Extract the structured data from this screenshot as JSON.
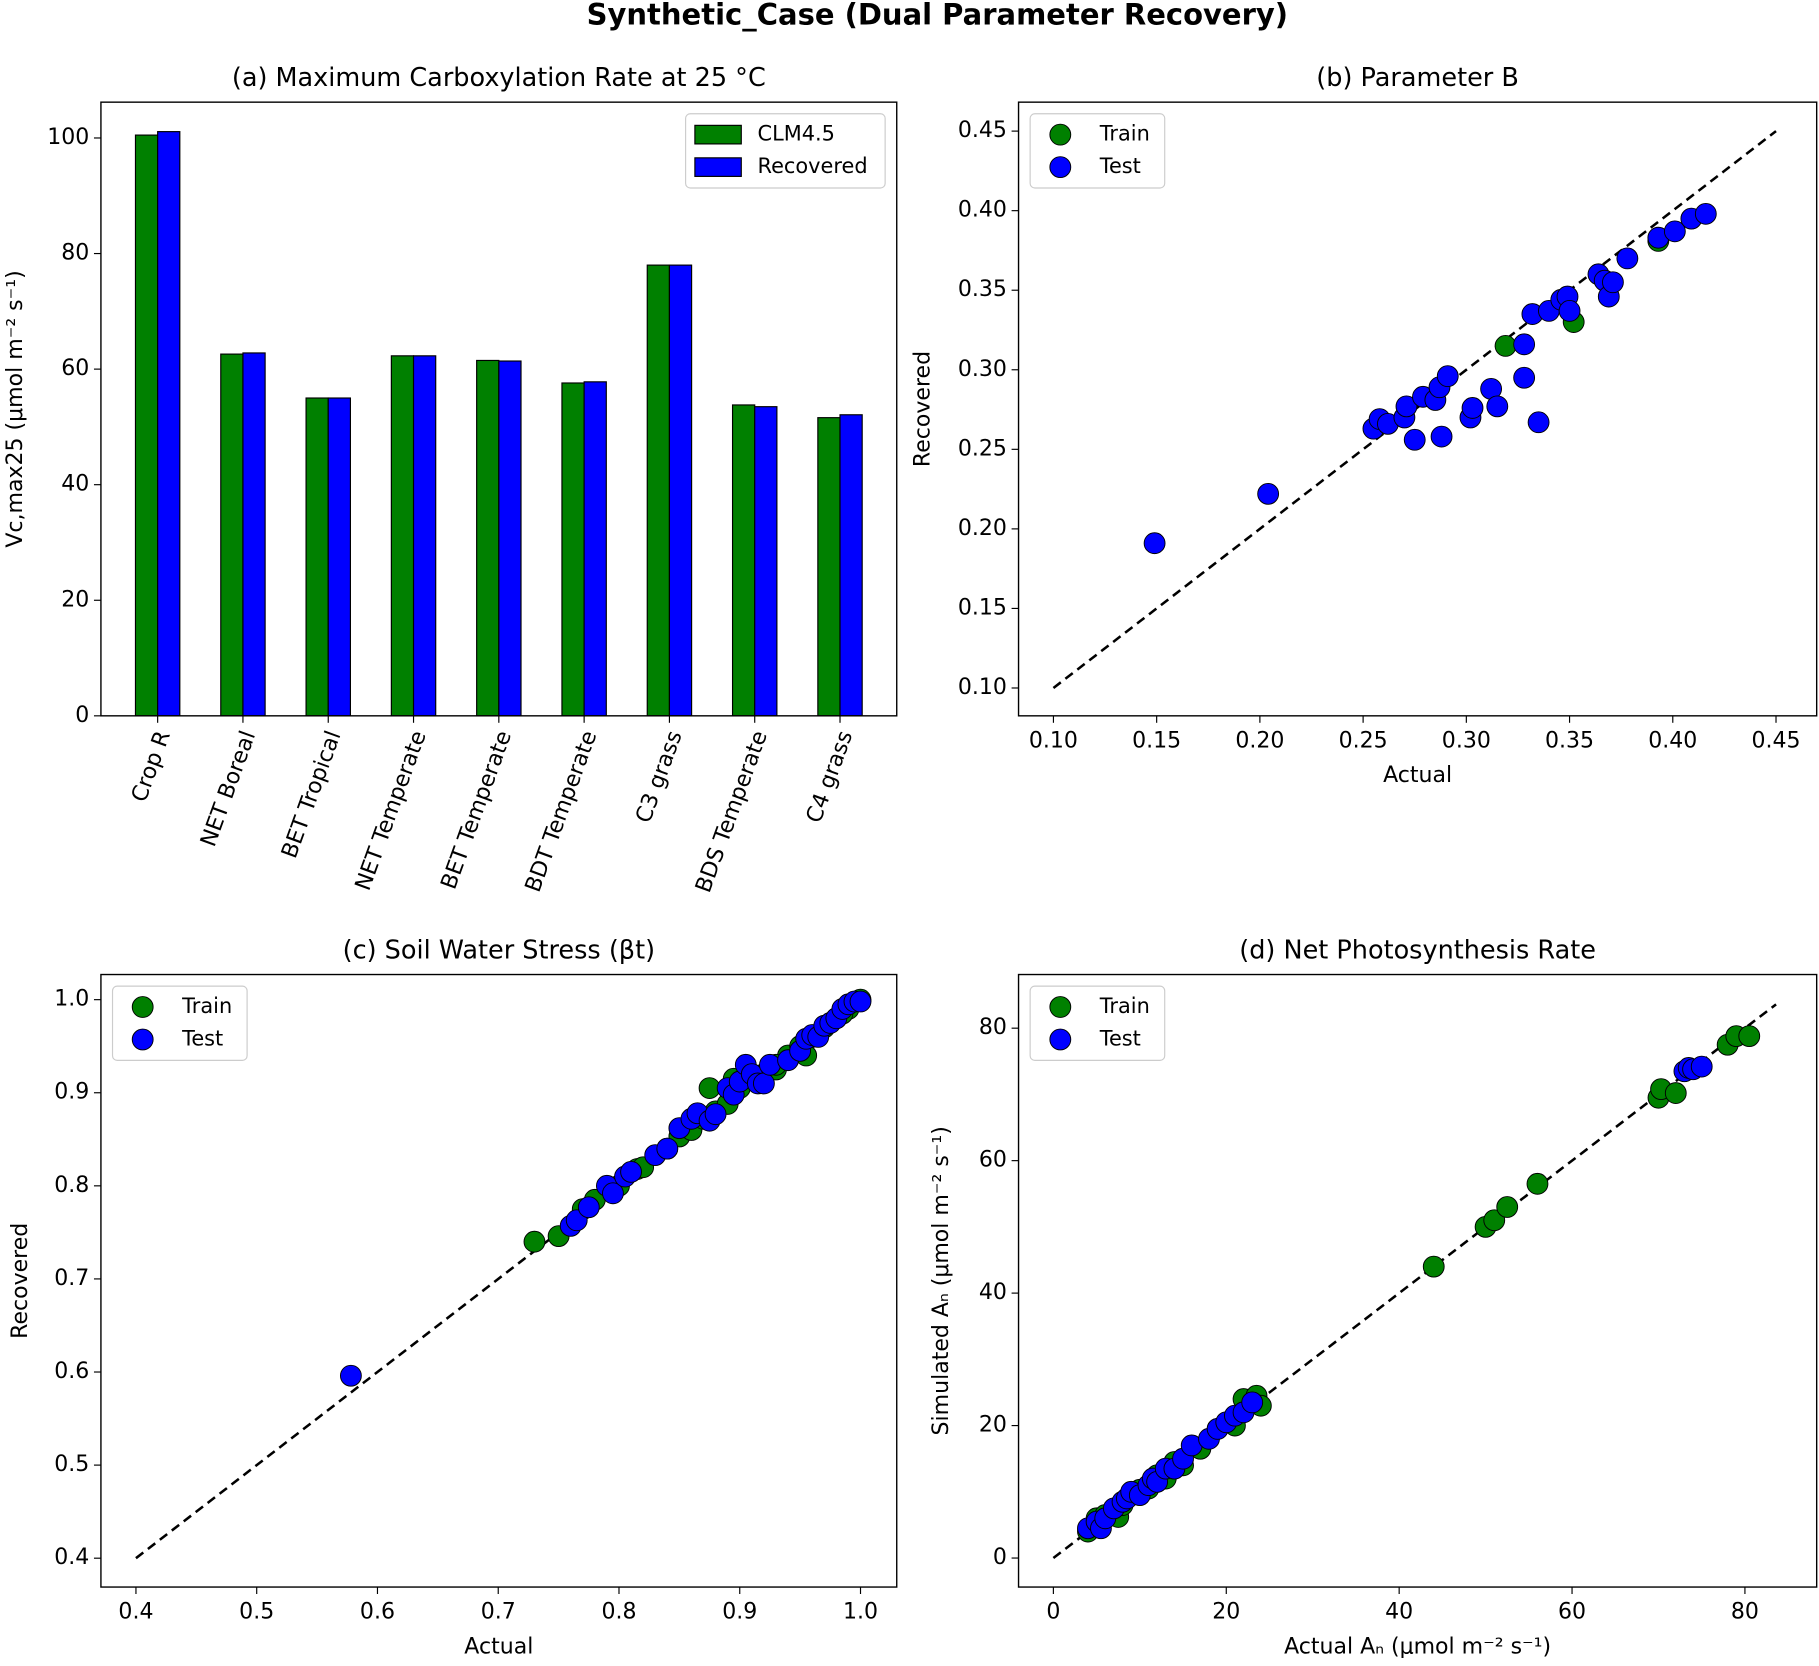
{
  "title": "Synthetic_Case (Dual Parameter Recovery)",
  "chart_data": [
    {
      "type": "bar",
      "title": "(a) Maximum Carboxylation Rate at 25 °C",
      "ylabel": "Vc,max25 (μmol m⁻² s⁻¹)",
      "categories": [
        "Crop R",
        "NET Boreal",
        "BET Tropical",
        "NET Temperate",
        "BET Temperate",
        "BDT Temperate",
        "C3 grass",
        "BDS Temperate",
        "C4 grass"
      ],
      "series": [
        {
          "name": "CLM4.5",
          "color": "#008000",
          "values": [
            100.5,
            62.6,
            55,
            62.3,
            61.5,
            57.6,
            78,
            53.8,
            51.6
          ]
        },
        {
          "name": "Recovered",
          "color": "#0000ff",
          "values": [
            101.1,
            62.8,
            55,
            62.3,
            61.4,
            57.8,
            78,
            53.5,
            52.1
          ]
        }
      ],
      "ylim": [
        0,
        106.2
      ],
      "yticks": [
        0,
        20,
        40,
        60,
        80,
        100
      ],
      "legend": "upper right"
    },
    {
      "type": "scatter",
      "title": "(b) Parameter B",
      "xlabel": "Actual",
      "ylabel": "Recovered",
      "xlim": [
        0.0831,
        0.4697
      ],
      "ylim": [
        0.0825,
        0.4682
      ],
      "xticks": [
        {
          "value": 0.1,
          "label": "0.10"
        },
        0.15,
        {
          "value": 0.2,
          "label": "0.20"
        },
        0.25,
        {
          "value": 0.3,
          "label": "0.30"
        },
        0.35,
        {
          "value": 0.4,
          "label": "0.40"
        },
        0.45
      ],
      "yticks": [
        {
          "value": 0.1,
          "label": "0.10"
        },
        0.15,
        {
          "value": 0.2,
          "label": "0.20"
        },
        0.25,
        {
          "value": 0.3,
          "label": "0.30"
        },
        0.35,
        {
          "value": 0.4,
          "label": "0.40"
        },
        0.45
      ],
      "identity_line": [
        0.1,
        0.45
      ],
      "legend": "upper left",
      "series": [
        {
          "name": "Train",
          "color": "#008000",
          "x": [
            0.319,
            0.352,
            0.393
          ],
          "values": [
            0.315,
            0.33,
            0.381
          ]
        },
        {
          "name": "Test",
          "color": "#0000ff",
          "x": [
            0.149,
            0.204,
            0.255,
            0.258,
            0.262,
            0.27,
            0.271,
            0.275,
            0.279,
            0.285,
            0.287,
            0.288,
            0.291,
            0.302,
            0.303,
            0.312,
            0.315,
            0.328,
            0.328,
            0.332,
            0.335,
            0.34,
            0.346,
            0.349,
            0.35,
            0.364,
            0.367,
            0.369,
            0.371,
            0.378,
            0.393,
            0.401,
            0.409,
            0.416
          ],
          "values": [
            0.191,
            0.222,
            0.263,
            0.269,
            0.266,
            0.27,
            0.277,
            0.256,
            0.283,
            0.281,
            0.289,
            0.258,
            0.296,
            0.27,
            0.276,
            0.288,
            0.277,
            0.316,
            0.295,
            0.335,
            0.267,
            0.337,
            0.344,
            0.346,
            0.337,
            0.36,
            0.356,
            0.346,
            0.355,
            0.37,
            0.383,
            0.387,
            0.395,
            0.398
          ]
        }
      ]
    },
    {
      "type": "scatter",
      "title": "(c) Soil Water Stress (βt)",
      "xlabel": "Actual",
      "ylabel": "Recovered",
      "xlim": [
        0.371,
        1.03
      ],
      "ylim": [
        0.369,
        1.027
      ],
      "xticks": [
        0.4,
        0.5,
        0.6,
        0.7,
        0.8,
        0.9,
        {
          "value": 1,
          "label": "1.0"
        }
      ],
      "yticks": [
        0.4,
        0.5,
        0.6,
        0.7,
        0.8,
        0.9,
        {
          "value": 1,
          "label": "1.0"
        }
      ],
      "identity_line": [
        0.4,
        1
      ],
      "legend": "upper left",
      "series": [
        {
          "name": "Train",
          "color": "#008000",
          "x": [
            0.73,
            0.75,
            0.77,
            0.78,
            0.8,
            0.815,
            0.82,
            0.84,
            0.85,
            0.86,
            0.87,
            0.875,
            0.88,
            0.89,
            0.895,
            0.9,
            0.91,
            0.92,
            0.93,
            0.94,
            0.95,
            0.96,
            0.97,
            0.98,
            0.99,
            1,
            0.93,
            0.955,
            0.985
          ],
          "values": [
            0.74,
            0.746,
            0.775,
            0.785,
            0.8,
            0.818,
            0.82,
            0.84,
            0.853,
            0.86,
            0.872,
            0.905,
            0.88,
            0.888,
            0.915,
            0.905,
            0.92,
            0.92,
            0.925,
            0.94,
            0.95,
            0.96,
            0.97,
            0.98,
            0.99,
            1,
            0.93,
            0.94,
            0.985
          ]
        },
        {
          "name": "Test",
          "color": "#0000ff",
          "x": [
            0.578,
            0.76,
            0.765,
            0.775,
            0.79,
            0.795,
            0.805,
            0.81,
            0.83,
            0.84,
            0.85,
            0.86,
            0.865,
            0.875,
            0.88,
            0.89,
            0.895,
            0.9,
            0.905,
            0.91,
            0.915,
            0.92,
            0.925,
            0.94,
            0.95,
            0.955,
            0.96,
            0.965,
            0.97,
            0.975,
            0.98,
            0.985,
            0.99,
            0.995,
            1
          ],
          "values": [
            0.596,
            0.757,
            0.763,
            0.777,
            0.8,
            0.792,
            0.81,
            0.815,
            0.833,
            0.84,
            0.862,
            0.872,
            0.878,
            0.87,
            0.877,
            0.905,
            0.898,
            0.912,
            0.93,
            0.92,
            0.91,
            0.91,
            0.93,
            0.935,
            0.945,
            0.958,
            0.962,
            0.96,
            0.972,
            0.975,
            0.98,
            0.99,
            0.995,
            0.998,
            0.998
          ]
        }
      ]
    },
    {
      "type": "scatter",
      "title": "(d) Net Photosynthesis Rate",
      "xlabel": "Actual Aₙ (μmol m⁻² s⁻¹)",
      "ylabel": "Simulated Aₙ (μmol m⁻² s⁻¹)",
      "xlim": [
        -4.03,
        88.3
      ],
      "ylim": [
        -4.38,
        88.1
      ],
      "xticks": [
        0,
        20,
        40,
        60,
        80
      ],
      "yticks": [
        0,
        20,
        40,
        60,
        80
      ],
      "identity_line": [
        0,
        83.6
      ],
      "legend": "upper left",
      "series": [
        {
          "name": "Train",
          "color": "#008000",
          "x": [
            4,
            5,
            6,
            7,
            7.5,
            8,
            9,
            10,
            11,
            12,
            13,
            14,
            15,
            17,
            19,
            21,
            22,
            23.5,
            24,
            44,
            50,
            51,
            52.5,
            56,
            70,
            70.3,
            72,
            78,
            79,
            80.5
          ],
          "values": [
            4,
            6,
            6.5,
            7,
            6.2,
            8,
            9.5,
            10.3,
            10.5,
            12.5,
            12,
            14.5,
            14,
            16.5,
            19.5,
            20,
            24,
            24.5,
            23,
            44,
            50,
            51,
            53,
            56.5,
            69.5,
            70.8,
            70.2,
            77.5,
            78.8,
            78.8
          ]
        },
        {
          "name": "Test",
          "color": "#0000ff",
          "x": [
            4,
            5,
            5.5,
            6,
            7,
            8,
            8.5,
            9,
            10,
            11,
            11.5,
            12,
            13,
            14,
            15,
            16,
            18,
            19,
            20,
            21,
            22,
            23,
            73,
            73.5,
            74,
            75
          ],
          "values": [
            4.5,
            5.5,
            4.5,
            6,
            7.5,
            8.5,
            9,
            10,
            9.5,
            11,
            12,
            11.5,
            13.5,
            13.5,
            15,
            17,
            18,
            19.5,
            20.5,
            21.5,
            22,
            23.5,
            73.5,
            74,
            73.8,
            74.2
          ]
        }
      ]
    }
  ]
}
